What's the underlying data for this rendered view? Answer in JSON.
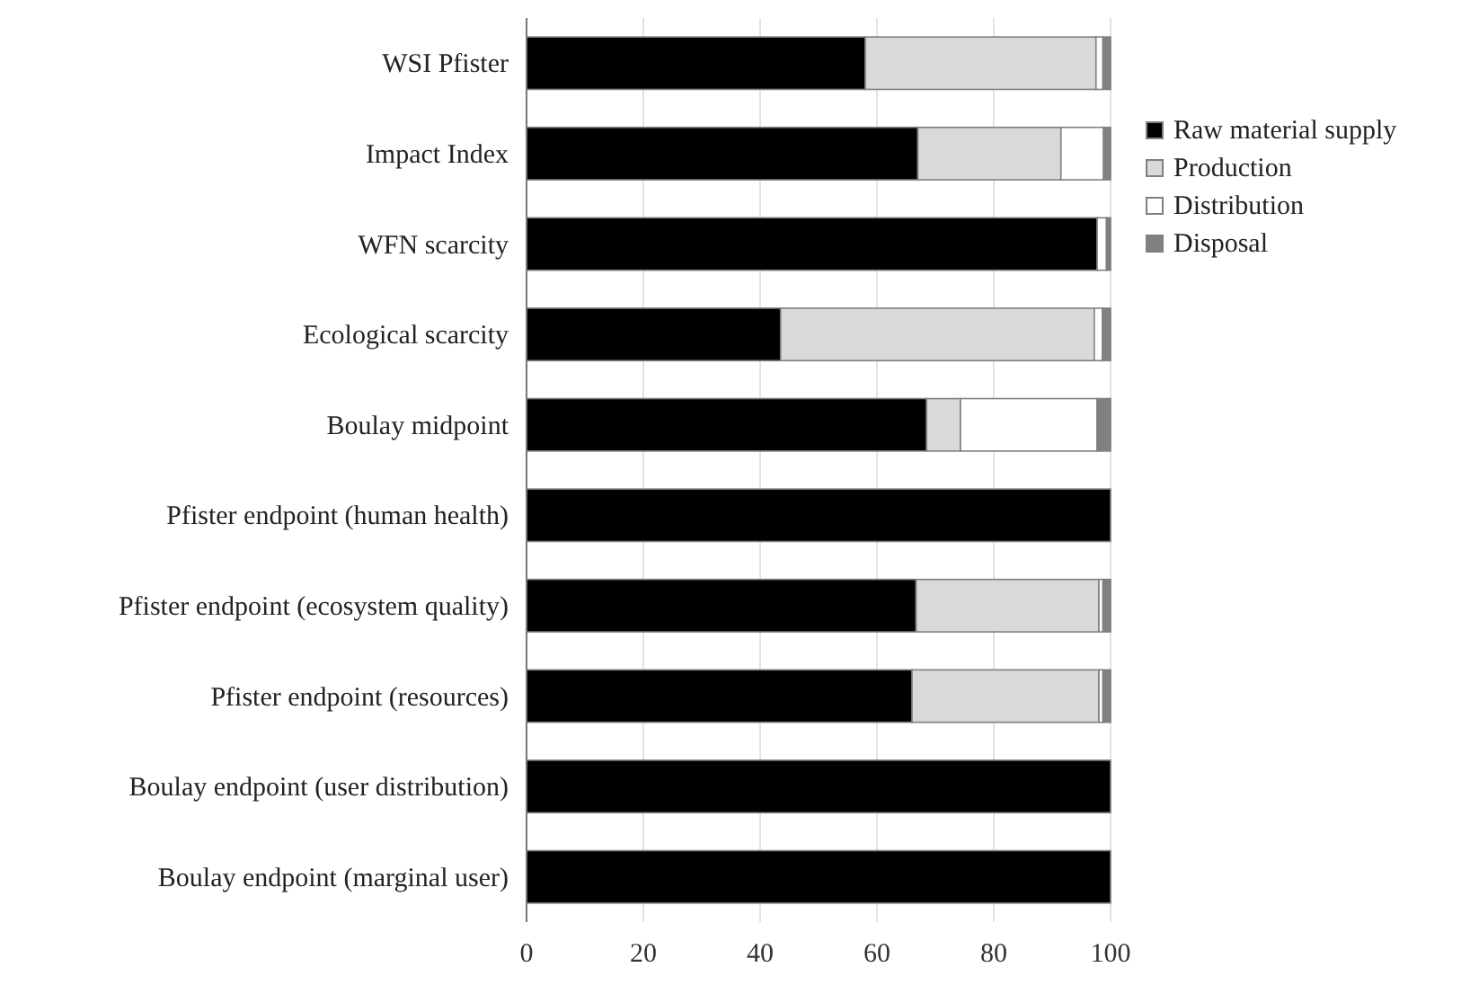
{
  "chart_data": {
    "type": "bar",
    "orientation": "horizontal",
    "stacked": true,
    "categories": [
      "WSI Pfister",
      "Impact Index",
      "WFN scarcity",
      "Ecological scarcity",
      "Boulay midpoint",
      "Pfister endpoint (human health)",
      "Pfister endpoint (ecosystem quality)",
      "Pfister endpoint (resources)",
      "Boulay endpoint (user distribution)",
      "Boulay endpoint (marginal user)"
    ],
    "series": [
      {
        "name": "Raw material supply",
        "color": "#000000",
        "values": [
          58,
          67,
          97.7,
          43.5,
          68.5,
          100,
          66.7,
          66,
          100,
          100
        ]
      },
      {
        "name": "Production",
        "color": "#d9d9d9",
        "values": [
          39.5,
          24.5,
          0,
          53.7,
          5.8,
          0,
          31.3,
          32,
          0,
          0
        ]
      },
      {
        "name": "Distribution",
        "color": "#ffffff",
        "values": [
          1.2,
          7.3,
          1.6,
          1.4,
          23.4,
          0,
          0.7,
          0.7,
          0,
          0
        ]
      },
      {
        "name": "Disposal",
        "color": "#808080",
        "values": [
          1.3,
          1.2,
          0.7,
          1.4,
          2.3,
          0,
          1.3,
          1.3,
          0,
          0
        ]
      }
    ],
    "xlim": [
      0,
      100
    ],
    "xticks": [
      0,
      20,
      40,
      60,
      80,
      100
    ],
    "grid": "x",
    "legend": "right"
  }
}
